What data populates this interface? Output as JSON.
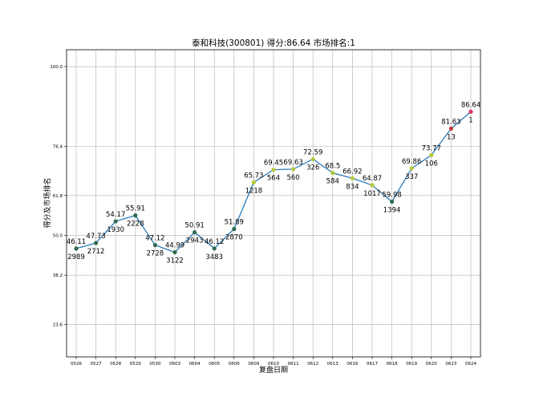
{
  "chart_data": {
    "type": "line",
    "title": "泰和科技(300801) 得分:86.64  市场排名:1",
    "xlabel": "复盘日期",
    "ylabel": "得分及市场排名",
    "categories": [
      "0526",
      "0527",
      "0528",
      "0529",
      "0530",
      "0603",
      "0604",
      "0605",
      "0606",
      "0609",
      "0610",
      "0611",
      "0612",
      "0613",
      "0616",
      "0617",
      "0618",
      "0619",
      "0620",
      "0623",
      "0624"
    ],
    "yticks": [
      23.6,
      38.2,
      50.0,
      61.8,
      76.4,
      100.0
    ],
    "ytick_labels": [
      "23.6",
      "38.2",
      "50.0",
      "61.8",
      "76.4",
      "100.0"
    ],
    "ylim": [
      14.0,
      105.0
    ],
    "grid": true,
    "series": [
      {
        "values": [
          46.11,
          47.73,
          54.17,
          55.91,
          47.12,
          44.99,
          50.91,
          46.12,
          51.89,
          65.73,
          69.45,
          69.63,
          72.59,
          68.5,
          66.92,
          64.87,
          59.98,
          69.86,
          73.77,
          81.63,
          86.64
        ],
        "value_labels": [
          "46.11",
          "47.73",
          "54.17",
          "55.91",
          "47.12",
          "44.99",
          "50.91",
          "46.12",
          "51.89",
          "65.73",
          "69.45",
          "69.63",
          "72.59",
          "68.5",
          "66.92",
          "64.87",
          "59.98",
          "69.86",
          "73.77",
          "81.63",
          "86.64"
        ],
        "ranks": [
          "2989",
          "2712",
          "1930",
          "2228",
          "2728",
          "3122",
          "2943",
          "3483",
          "2870",
          "1218",
          "564",
          "560",
          "326",
          "584",
          "834",
          "1017",
          "1394",
          "337",
          "106",
          "13",
          "1"
        ],
        "marker_colors": [
          "#2e6b4b",
          "#2e6b4b",
          "#2e6b4b",
          "#2e6b4b",
          "#2e6b4b",
          "#2e6b4b",
          "#2e6b4b",
          "#2e6b4b",
          "#2e6b4b",
          "#b5c93a",
          "#b5c93a",
          "#b5c93a",
          "#b5c93a",
          "#b5c93a",
          "#b5c93a",
          "#b5c93a",
          "#2e6b4b",
          "#b5c93a",
          "#b5c93a",
          "#c23b3b",
          "#d8315b"
        ]
      }
    ],
    "colors": {
      "line": "#2b7bb9",
      "grid": "#b0b0b0",
      "frame": "#000000"
    }
  }
}
